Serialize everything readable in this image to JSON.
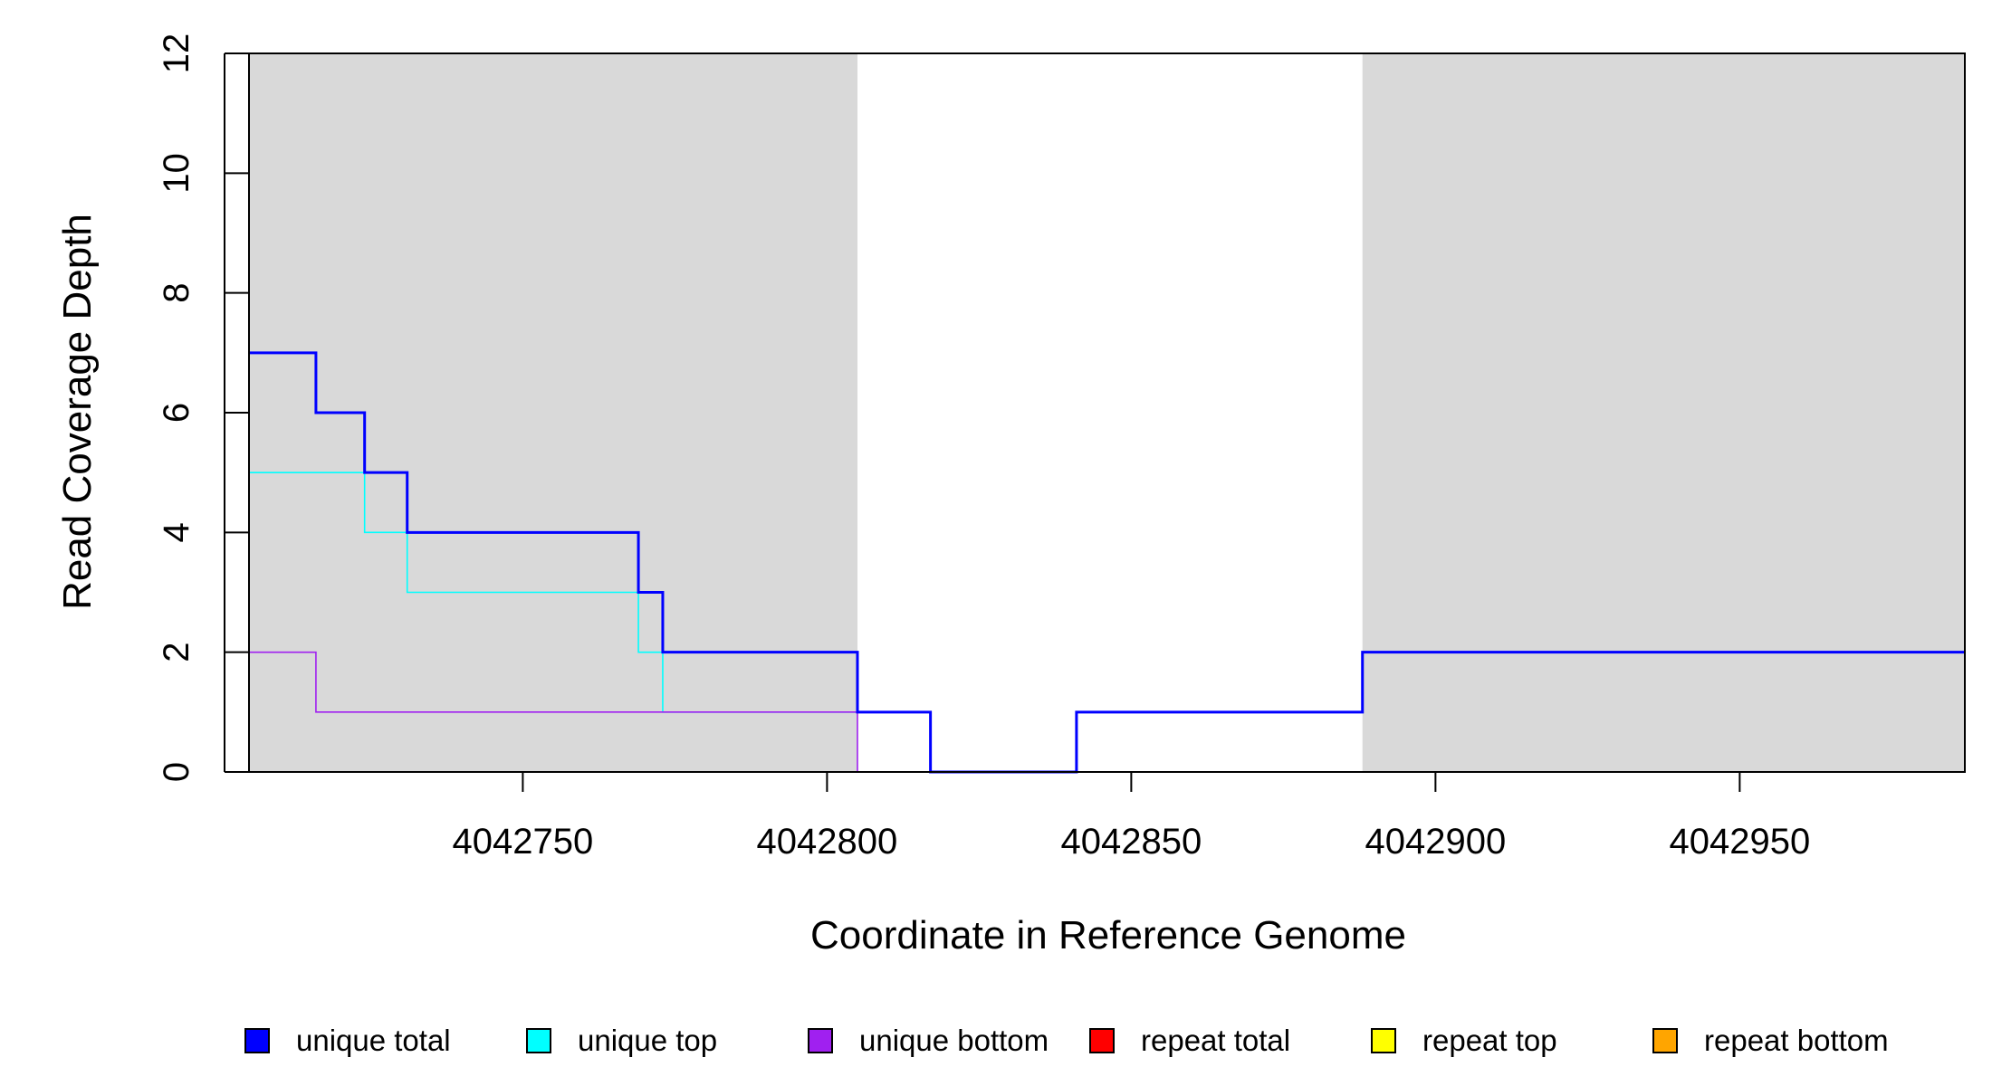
{
  "chart_data": {
    "type": "line",
    "xlabel": "Coordinate in Reference Genome",
    "ylabel": "Read Coverage Depth",
    "xlim": [
      4042705,
      4042987
    ],
    "ylim": [
      0,
      12
    ],
    "x_ticks": [
      4042750,
      4042800,
      4042850,
      4042900,
      4042950
    ],
    "y_ticks": [
      0,
      2,
      4,
      6,
      8,
      10,
      12
    ],
    "shaded_regions": [
      {
        "from": 4042705,
        "to": 4042805,
        "color": "#d9d9d9"
      },
      {
        "from": 4042888,
        "to": 4042987,
        "color": "#d9d9d9"
      }
    ],
    "series": [
      {
        "name": "unique total",
        "color": "#0000ff",
        "steps": [
          [
            4042705,
            7
          ],
          [
            4042716,
            6
          ],
          [
            4042724,
            5
          ],
          [
            4042731,
            4
          ],
          [
            4042769,
            3
          ],
          [
            4042773,
            2
          ],
          [
            4042805,
            1
          ],
          [
            4042817,
            0
          ],
          [
            4042841,
            1
          ],
          [
            4042888,
            2
          ],
          [
            4042987,
            2
          ]
        ]
      },
      {
        "name": "unique top",
        "color": "#00ffff",
        "steps": [
          [
            4042705,
            5
          ],
          [
            4042724,
            4
          ],
          [
            4042731,
            3
          ],
          [
            4042769,
            2
          ],
          [
            4042773,
            1
          ],
          [
            4042805,
            1
          ],
          [
            4042817,
            0
          ],
          [
            4042841,
            0
          ],
          [
            4042888,
            0
          ],
          [
            4042987,
            0
          ]
        ]
      },
      {
        "name": "unique bottom",
        "color": "#a020f0",
        "steps": [
          [
            4042705,
            2
          ],
          [
            4042716,
            1
          ],
          [
            4042805,
            0
          ],
          [
            4042841,
            1
          ],
          [
            4042888,
            2
          ],
          [
            4042987,
            2
          ]
        ]
      },
      {
        "name": "repeat total",
        "color": "#ff0000",
        "steps": [
          [
            4042705,
            0
          ],
          [
            4042987,
            0
          ]
        ]
      },
      {
        "name": "repeat top",
        "color": "#ffff00",
        "steps": [
          [
            4042705,
            0
          ],
          [
            4042987,
            0
          ]
        ]
      },
      {
        "name": "repeat bottom",
        "color": "#ffa500",
        "steps": [
          [
            4042705,
            0
          ],
          [
            4042987,
            0
          ]
        ]
      }
    ],
    "legend": {
      "placement": "bottom",
      "items": [
        {
          "label": "unique total",
          "color": "#0000ff"
        },
        {
          "label": "unique top",
          "color": "#00ffff"
        },
        {
          "label": "unique bottom",
          "color": "#a020f0"
        },
        {
          "label": "repeat total",
          "color": "#ff0000"
        },
        {
          "label": "repeat top",
          "color": "#ffff00"
        },
        {
          "label": "repeat bottom",
          "color": "#ffa500"
        }
      ]
    }
  }
}
